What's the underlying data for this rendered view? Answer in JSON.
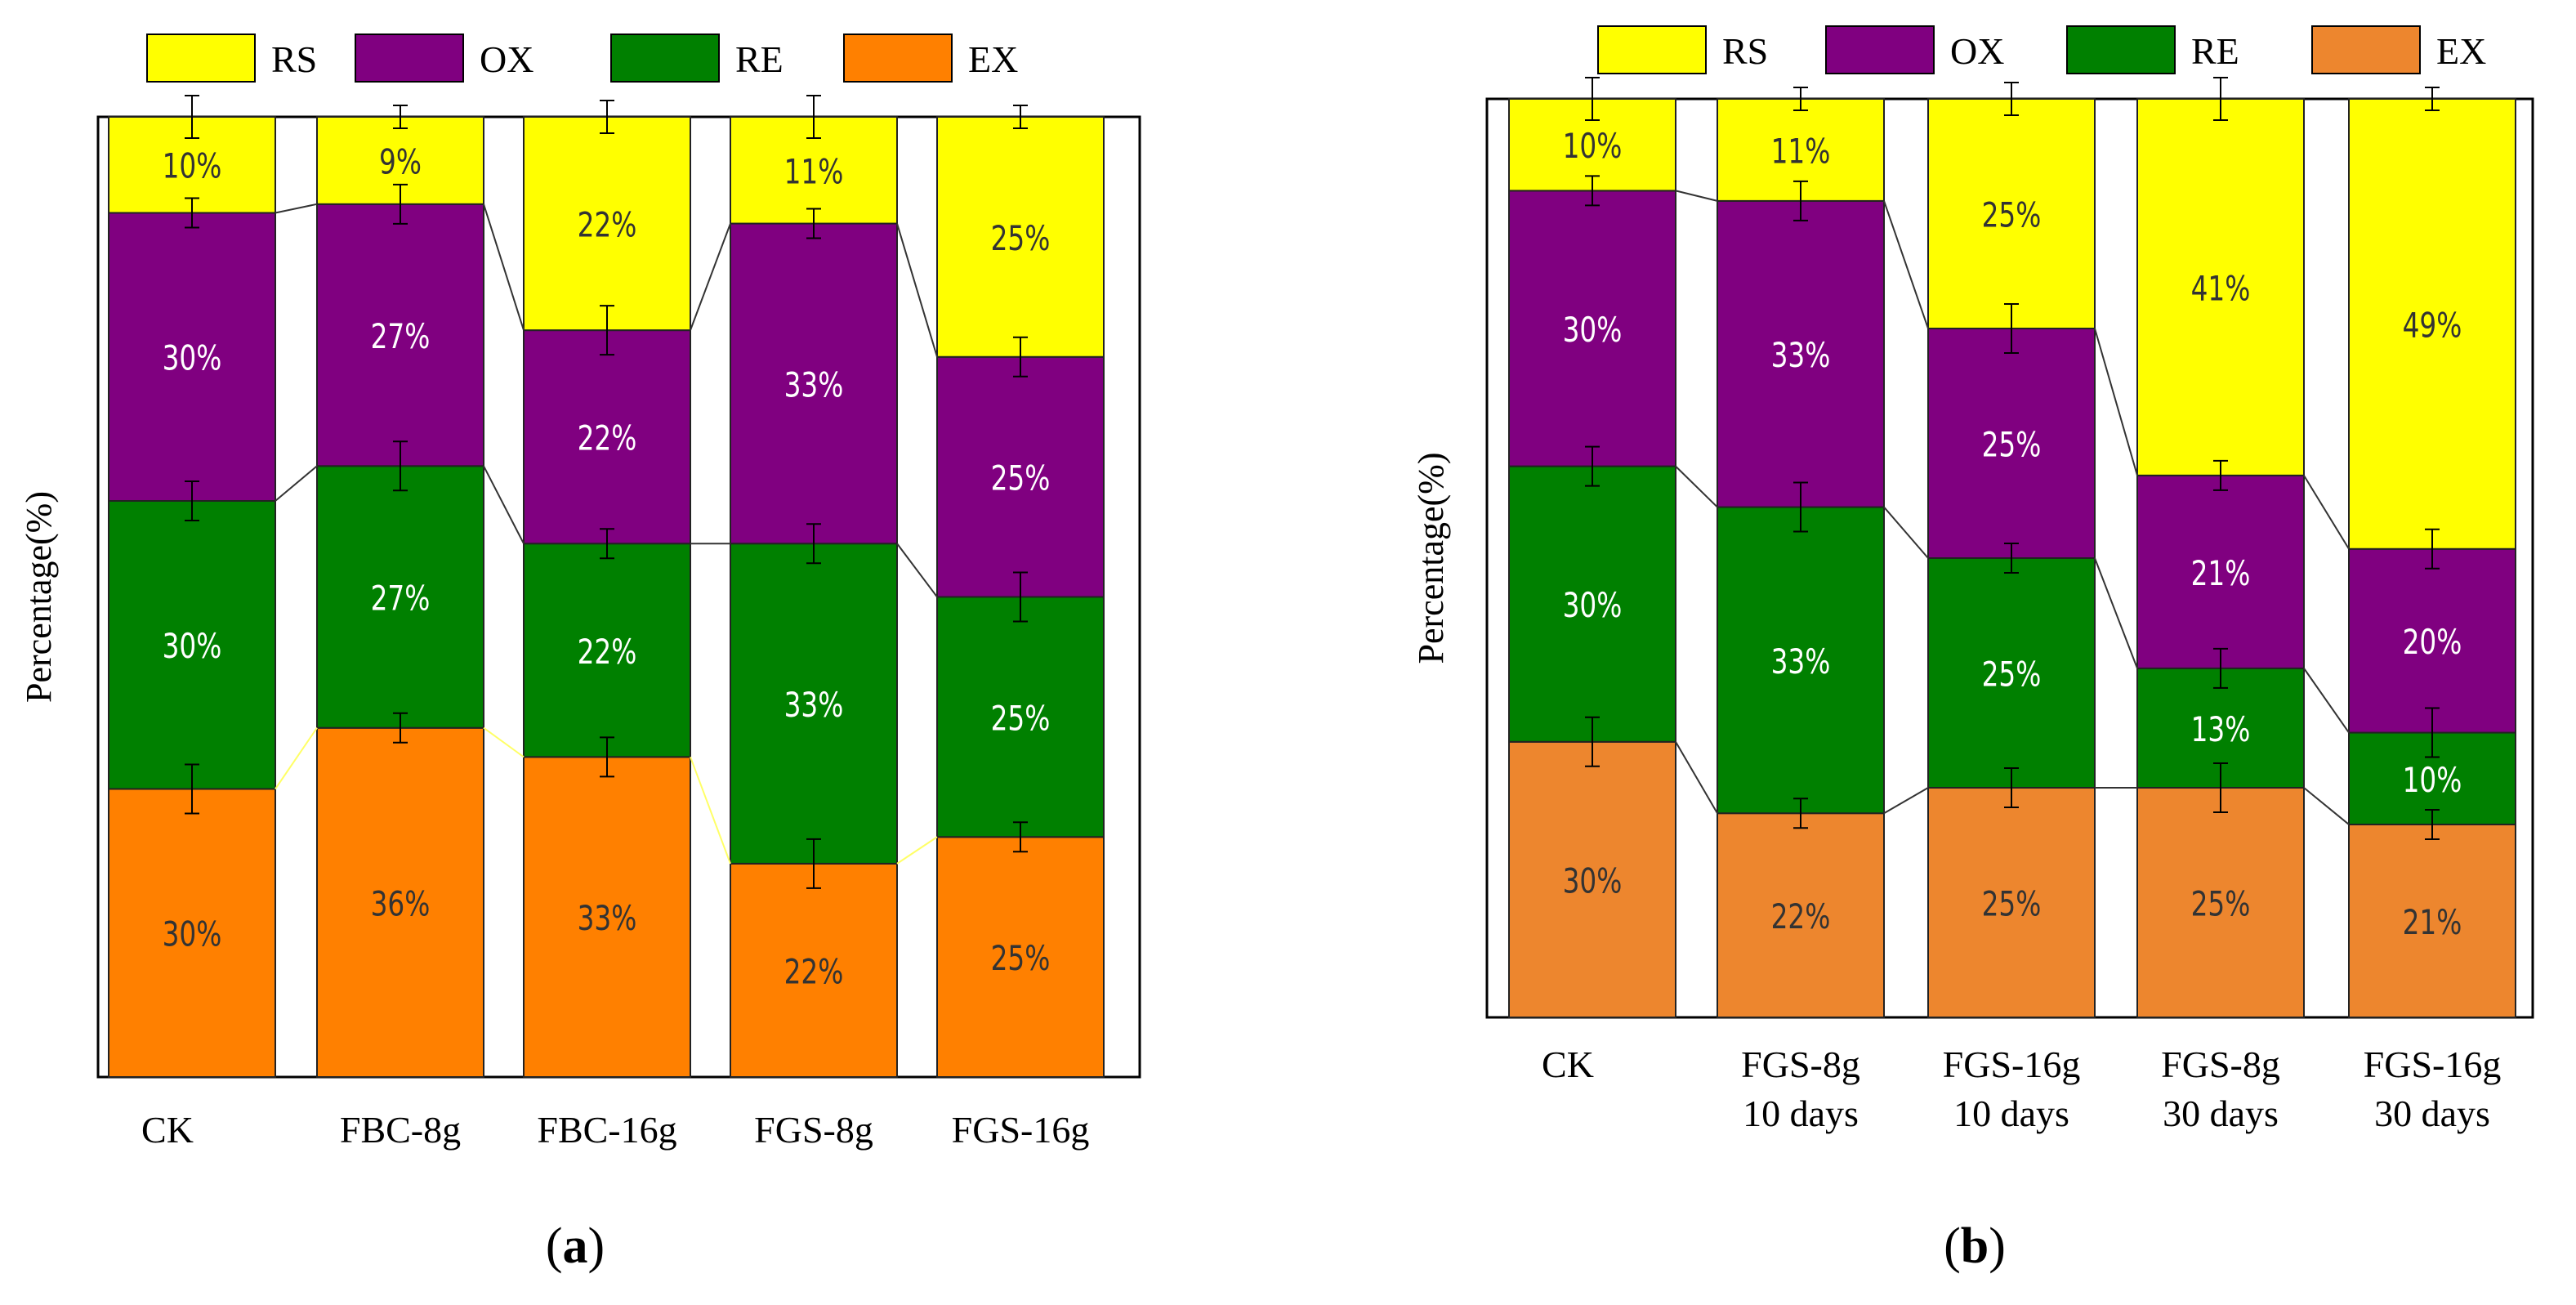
{
  "colors": {
    "RS": "#ffff00",
    "OX": "#800080",
    "RE": "#008000",
    "EX_a": "#ff8000",
    "EX_b": "#ed862e",
    "connector_a": "#ffff66"
  },
  "chart_data": [
    {
      "type": "bar",
      "stacked": true,
      "panel": "a",
      "ylabel": "Percentage(%)",
      "ylim": [
        0,
        100
      ],
      "legend": [
        "RS",
        "OX",
        "RE",
        "EX"
      ],
      "legend_position": "top",
      "categories": [
        "CK",
        "FBC-8g",
        "FBC-16g",
        "FGS-8g",
        "FGS-16g"
      ],
      "series": [
        {
          "name": "EX",
          "values": [
            30,
            36,
            33,
            22,
            25
          ],
          "labels": [
            "30%",
            "36%",
            "33%",
            "22%",
            "25%"
          ]
        },
        {
          "name": "RE",
          "values": [
            30,
            27,
            22,
            33,
            25
          ],
          "labels": [
            "30%",
            "27%",
            "22%",
            "33%",
            "25%"
          ]
        },
        {
          "name": "OX",
          "values": [
            30,
            27,
            22,
            33,
            25
          ],
          "labels": [
            "30%",
            "27%",
            "22%",
            "33%",
            "25%"
          ]
        },
        {
          "name": "RS",
          "values": [
            10,
            9,
            22,
            11,
            25
          ],
          "labels": [
            "10%",
            "9%",
            "22%",
            "11%",
            "25%"
          ]
        }
      ]
    },
    {
      "type": "bar",
      "stacked": true,
      "panel": "b",
      "ylabel": "Percentage(%)",
      "ylim": [
        0,
        100
      ],
      "legend": [
        "RS",
        "OX",
        "RE",
        "EX"
      ],
      "legend_position": "top",
      "categories": [
        "CK",
        "FGS-8g\n10 days",
        "FGS-16g\n10 days",
        "FGS-8g\n30 days",
        "FGS-16g\n30 days"
      ],
      "series": [
        {
          "name": "EX",
          "values": [
            30,
            22,
            25,
            25,
            21
          ],
          "labels": [
            "30%",
            "22%",
            "25%",
            "25%",
            "21%"
          ]
        },
        {
          "name": "RE",
          "values": [
            30,
            33,
            25,
            13,
            10
          ],
          "labels": [
            "30%",
            "33%",
            "25%",
            "13%",
            "10%"
          ]
        },
        {
          "name": "OX",
          "values": [
            30,
            33,
            25,
            21,
            20
          ],
          "labels": [
            "30%",
            "33%",
            "25%",
            "21%",
            "20%"
          ]
        },
        {
          "name": "RS",
          "values": [
            10,
            11,
            25,
            41,
            49
          ],
          "labels": [
            "10%",
            "11%",
            "25%",
            "41%",
            "49%"
          ]
        }
      ]
    }
  ],
  "panel_labels": [
    {
      "open": "(",
      "letter": "a",
      "close": ")"
    },
    {
      "open": "(",
      "letter": "b",
      "close": ")"
    }
  ]
}
